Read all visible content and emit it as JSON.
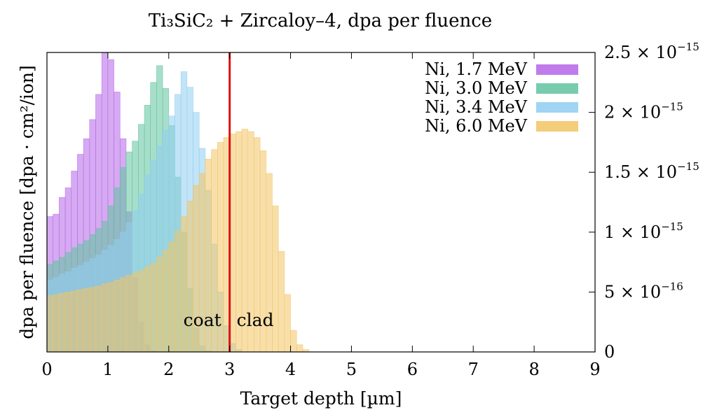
{
  "chart_data": {
    "type": "bar",
    "title": "Ti₃SiC₂ + Zircaloy–4, dpa per fluence",
    "xlabel": "Target depth [µm]",
    "ylabel": "dpa per fluence [dpa · cm²/ion]",
    "xlim": [
      0,
      9
    ],
    "ylim": [
      0,
      2.5e-15
    ],
    "x_ticks": [
      "0",
      "1",
      "2",
      "3",
      "4",
      "5",
      "6",
      "7",
      "8",
      "9"
    ],
    "y_ticks": [
      {
        "value": 0,
        "mantissa": "0",
        "exponent": ""
      },
      {
        "value": 5e-16,
        "mantissa": "5 × 10",
        "exponent": "−16"
      },
      {
        "value": 1e-15,
        "mantissa": "1 × 10",
        "exponent": "−15"
      },
      {
        "value": 1.5e-15,
        "mantissa": "1.5 × 10",
        "exponent": "−15"
      },
      {
        "value": 2e-15,
        "mantissa": "2 × 10",
        "exponent": "−15"
      },
      {
        "value": 2.5e-15,
        "mantissa": "2.5 × 10",
        "exponent": "−15"
      }
    ],
    "y_axis_side": "right",
    "bin_width": 0.1,
    "grid": false,
    "legend_position": "top-right",
    "series": [
      {
        "name": "Ni, 1.7 MeV",
        "color": "#b565e8",
        "values": [
          1.13e-15,
          1.15e-15,
          1.29e-15,
          1.37e-15,
          1.51e-15,
          1.65e-15,
          1.78e-15,
          1.94e-15,
          2.15e-15,
          2.5e-15,
          2.44e-15,
          2.17e-15,
          1.78e-15,
          1.17e-15,
          6.2e-16,
          2.5e-16,
          6e-17,
          1e-17
        ]
      },
      {
        "name": "Ni, 3.0 MeV",
        "color": "#5fc39f",
        "values": [
          7.3e-16,
          7.6e-16,
          7.9e-16,
          8.3e-16,
          8.7e-16,
          9e-16,
          9.3e-16,
          9.8e-16,
          1.03e-15,
          1.09e-15,
          1.22e-15,
          1.37e-15,
          1.54e-15,
          1.67e-15,
          1.76e-15,
          1.9e-15,
          2.06e-15,
          2.25e-15,
          2.39e-15,
          2.2e-15,
          1.89e-15,
          1.46e-15,
          1e-15,
          5.3e-16,
          2e-16,
          5e-17,
          1e-17
        ]
      },
      {
        "name": "Ni, 3.4 MeV",
        "color": "#8fcdf0",
        "values": [
          6e-16,
          6.2e-16,
          6.5e-16,
          6.7e-16,
          7e-16,
          7.2e-16,
          7.5e-16,
          7.8e-16,
          8.1e-16,
          8.5e-16,
          8.9e-16,
          9.4e-16,
          1e-15,
          1.08e-15,
          1.18e-15,
          1.32e-15,
          1.48e-15,
          1.6e-15,
          1.72e-15,
          1.85e-15,
          1.97e-15,
          2.15e-15,
          2.34e-15,
          2.21e-15,
          2e-15,
          1.7e-15,
          1.35e-15,
          9e-16,
          5e-16,
          2.2e-16,
          7e-17,
          2e-17
        ]
      },
      {
        "name": "Ni, 6.0 MeV",
        "color": "#f2c464",
        "values": [
          4.7e-16,
          4.8e-16,
          4.9e-16,
          5e-16,
          5.1e-16,
          5.2e-16,
          5.3e-16,
          5.4e-16,
          5.5e-16,
          5.7e-16,
          5.8e-16,
          6e-16,
          6.2e-16,
          6.4e-16,
          6.6e-16,
          6.8e-16,
          7.1e-16,
          7.4e-16,
          7.9e-16,
          8.5e-16,
          9.2e-16,
          1.01e-15,
          1.13e-15,
          1.26e-15,
          1.39e-15,
          1.49e-15,
          1.61e-15,
          1.69e-15,
          1.75e-15,
          1.79e-15,
          1.82e-15,
          1.84e-15,
          1.86e-15,
          1.84e-15,
          1.79e-15,
          1.68e-15,
          1.49e-15,
          1.22e-15,
          8.4e-16,
          4.8e-16,
          1.8e-16,
          6e-17,
          2e-17
        ]
      }
    ],
    "reference_line": {
      "x": 3.0,
      "color": "#dd1111"
    },
    "annotations": [
      {
        "text": "coat",
        "side": "left"
      },
      {
        "text": "clad",
        "side": "right"
      }
    ]
  }
}
